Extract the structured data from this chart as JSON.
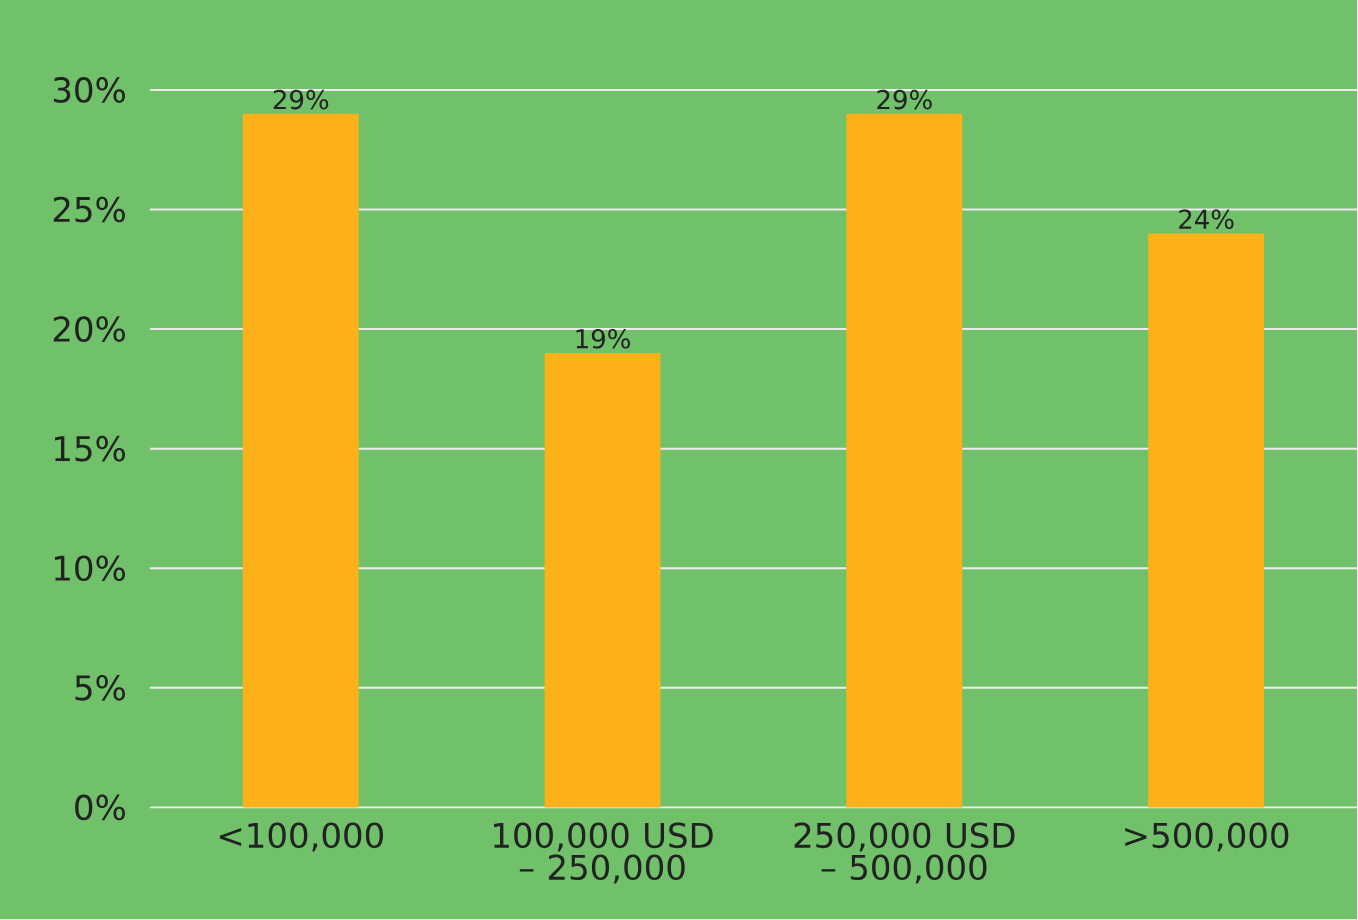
{
  "chart_data": {
    "type": "bar",
    "categories": [
      "<100,000",
      "100,000 USD – 250,000",
      "250,000 USD – 500,000",
      ">500,000"
    ],
    "values": [
      29,
      19,
      29,
      24
    ],
    "color": "#fdb118",
    "value_labels": [
      "29%",
      "19%",
      "29%",
      "24%"
    ],
    "ylim": [
      0,
      30
    ],
    "yticks": [
      {
        "value": 0,
        "label": "0%"
      },
      {
        "value": 5,
        "label": "5%"
      },
      {
        "value": 10,
        "label": "10%"
      },
      {
        "value": 15,
        "label": "15%"
      },
      {
        "value": 20,
        "label": "20%"
      },
      {
        "value": 25,
        "label": "25%"
      },
      {
        "value": 30,
        "label": "30%"
      }
    ],
    "grid": "y"
  }
}
